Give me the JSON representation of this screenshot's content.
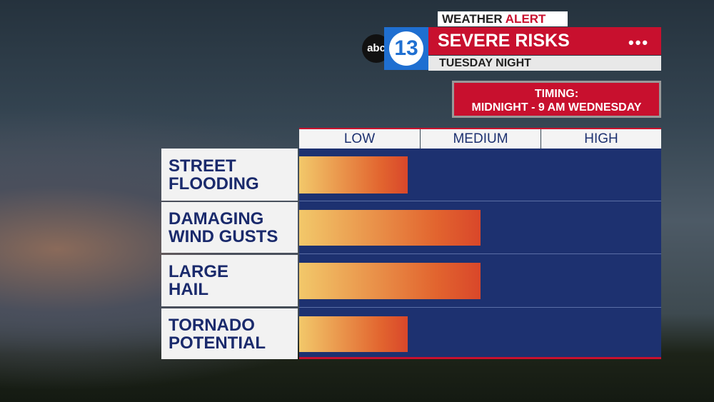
{
  "header": {
    "alert_word": "WEATHER",
    "alert_emphasis": "ALERT",
    "logo_network": "abc",
    "logo_channel": "13",
    "title": "SEVERE RISKS",
    "subtitle": "TUESDAY NIGHT",
    "timing_label": "TIMING:",
    "timing_value": "MIDNIGHT - 9 AM WEDNESDAY"
  },
  "chart_data": {
    "type": "bar",
    "orientation": "horizontal",
    "categories": [
      "STREET\nFLOODING",
      "DAMAGING\nWIND GUSTS",
      "LARGE\nHAIL",
      "TORNADO\nPOTENTIAL"
    ],
    "values": [
      0.9,
      1.5,
      1.5,
      0.9
    ],
    "xlim": [
      0,
      3
    ],
    "xticks": [
      {
        "value": 0.5,
        "label": "LOW"
      },
      {
        "value": 1.5,
        "label": "MEDIUM"
      },
      {
        "value": 2.5,
        "label": "HIGH"
      }
    ],
    "color": "#e2652f"
  }
}
